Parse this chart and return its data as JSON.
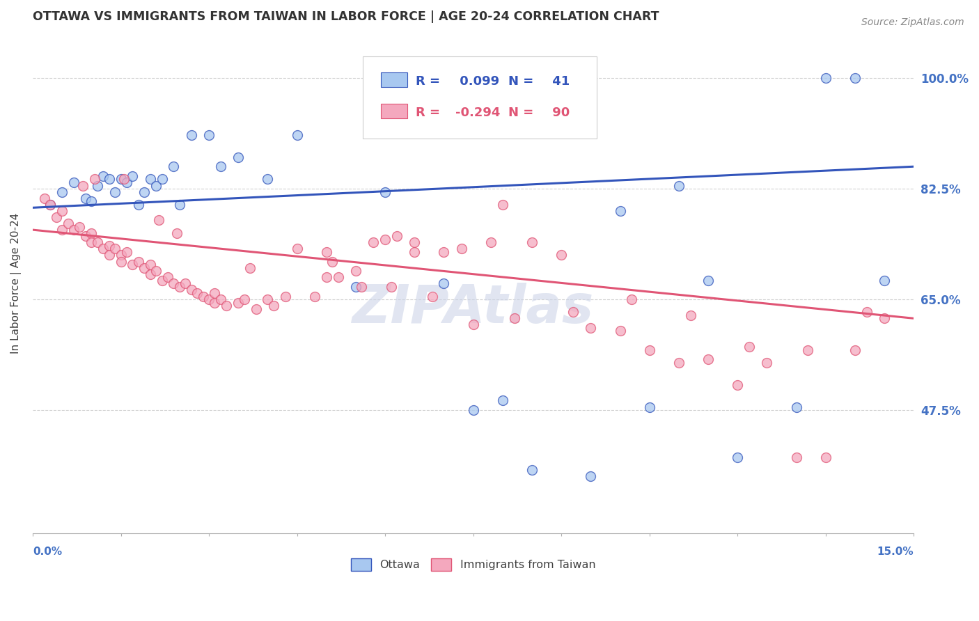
{
  "title": "OTTAWA VS IMMIGRANTS FROM TAIWAN IN LABOR FORCE | AGE 20-24 CORRELATION CHART",
  "source": "Source: ZipAtlas.com",
  "ylabel": "In Labor Force | Age 20-24",
  "xmin": 0.0,
  "xmax": 15.0,
  "ymin": 28.0,
  "ymax": 107.0,
  "yticks": [
    47.5,
    65.0,
    82.5,
    100.0
  ],
  "ytick_labels": [
    "47.5%",
    "65.0%",
    "82.5%",
    "100.0%"
  ],
  "legend_label1": "Ottawa",
  "legend_label2": "Immigrants from Taiwan",
  "R1": 0.099,
  "N1": 41,
  "R2": -0.294,
  "N2": 90,
  "blue_color": "#a8c8f0",
  "pink_color": "#f4a8be",
  "blue_line_color": "#3355bb",
  "pink_line_color": "#e05575",
  "title_color": "#333333",
  "axis_label_color": "#4472c4",
  "watermark_color": "#cdd5e8",
  "background_color": "#ffffff",
  "ottawa_x": [
    0.3,
    0.5,
    0.7,
    0.9,
    1.0,
    1.1,
    1.2,
    1.3,
    1.4,
    1.5,
    1.6,
    1.7,
    1.8,
    1.9,
    2.0,
    2.1,
    2.2,
    2.4,
    2.5,
    2.7,
    3.0,
    3.2,
    3.5,
    4.0,
    4.5,
    5.5,
    6.0,
    7.0,
    7.5,
    8.0,
    8.5,
    9.5,
    10.0,
    10.5,
    11.0,
    11.5,
    12.0,
    13.0,
    13.5,
    14.0,
    14.5
  ],
  "ottawa_y": [
    80.0,
    82.0,
    83.5,
    81.0,
    80.5,
    83.0,
    84.5,
    84.0,
    82.0,
    84.0,
    83.5,
    84.5,
    80.0,
    82.0,
    84.0,
    83.0,
    84.0,
    86.0,
    80.0,
    91.0,
    91.0,
    86.0,
    87.5,
    84.0,
    91.0,
    67.0,
    82.0,
    67.5,
    47.5,
    49.0,
    38.0,
    37.0,
    79.0,
    48.0,
    83.0,
    68.0,
    40.0,
    48.0,
    100.0,
    100.0,
    68.0
  ],
  "taiwan_x": [
    0.2,
    0.3,
    0.4,
    0.5,
    0.5,
    0.6,
    0.7,
    0.8,
    0.9,
    1.0,
    1.0,
    1.1,
    1.2,
    1.3,
    1.3,
    1.4,
    1.5,
    1.5,
    1.6,
    1.7,
    1.8,
    1.9,
    2.0,
    2.0,
    2.1,
    2.2,
    2.3,
    2.4,
    2.5,
    2.6,
    2.7,
    2.8,
    2.9,
    3.0,
    3.1,
    3.1,
    3.2,
    3.3,
    3.5,
    3.6,
    3.7,
    3.8,
    4.0,
    4.1,
    4.3,
    4.5,
    4.8,
    5.0,
    5.0,
    5.1,
    5.5,
    5.8,
    6.0,
    6.2,
    6.5,
    6.5,
    7.0,
    7.3,
    7.8,
    8.0,
    8.5,
    9.0,
    9.5,
    10.0,
    10.5,
    11.0,
    11.5,
    12.0,
    12.5,
    13.0,
    13.5,
    14.0,
    14.5,
    5.2,
    5.6,
    6.1,
    6.8,
    7.5,
    8.2,
    9.2,
    10.2,
    11.2,
    12.2,
    13.2,
    14.2,
    2.15,
    2.45,
    0.85,
    1.05,
    1.55
  ],
  "taiwan_y": [
    81.0,
    80.0,
    78.0,
    79.0,
    76.0,
    77.0,
    76.0,
    76.5,
    75.0,
    75.5,
    74.0,
    74.0,
    73.0,
    73.5,
    72.0,
    73.0,
    72.0,
    71.0,
    72.5,
    70.5,
    71.0,
    70.0,
    70.5,
    69.0,
    69.5,
    68.0,
    68.5,
    67.5,
    67.0,
    67.5,
    66.5,
    66.0,
    65.5,
    65.0,
    66.0,
    64.5,
    65.0,
    64.0,
    64.5,
    65.0,
    70.0,
    63.5,
    65.0,
    64.0,
    65.5,
    73.0,
    65.5,
    72.5,
    68.5,
    71.0,
    69.5,
    74.0,
    74.5,
    75.0,
    72.5,
    74.0,
    72.5,
    73.0,
    74.0,
    80.0,
    74.0,
    72.0,
    60.5,
    60.0,
    57.0,
    55.0,
    55.5,
    51.5,
    55.0,
    40.0,
    40.0,
    57.0,
    62.0,
    68.5,
    67.0,
    67.0,
    65.5,
    61.0,
    62.0,
    63.0,
    65.0,
    62.5,
    57.5,
    57.0,
    63.0,
    77.5,
    75.5,
    83.0,
    84.0,
    84.0
  ]
}
